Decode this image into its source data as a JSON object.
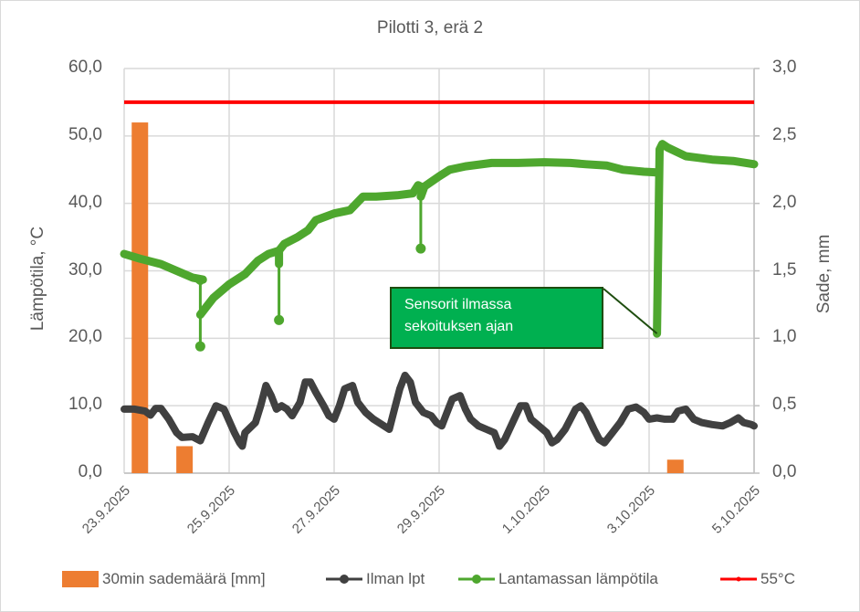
{
  "chart_data": {
    "type": "line+bar (combo, dual axis)",
    "title": "Pilotti 3, erä 2",
    "ylabel_left": "Lämpötila, °C",
    "ylabel_right": "Sade, mm",
    "ylim_left": [
      0,
      60
    ],
    "ylim_right": [
      0,
      3
    ],
    "yticks_left": [
      "0,0",
      "10,0",
      "20,0",
      "30,0",
      "40,0",
      "50,0",
      "60,0"
    ],
    "yticks_right": [
      "0,0",
      "0,5",
      "1,0",
      "1,5",
      "2,0",
      "2,5",
      "3,0"
    ],
    "x_ticks": [
      "23.9.2025",
      "25.9.2025",
      "27.9.2025",
      "29.9.2025",
      "1.10.2025",
      "3.10.2025",
      "5.10.2025"
    ],
    "x_unit": "days since 23.9.2025",
    "grid": true,
    "legend_position": "bottom",
    "series": [
      {
        "name": "30min sademäärä [mm]",
        "type": "bar",
        "axis": "right",
        "color": "#ed7d31",
        "points": [
          [
            0.3,
            2.6
          ],
          [
            1.15,
            0.2
          ],
          [
            10.5,
            0.1
          ]
        ]
      },
      {
        "name": "Ilman lpt",
        "type": "line",
        "axis": "left",
        "color": "#404040",
        "points": [
          [
            0,
            9.5
          ],
          [
            0.2,
            9.5
          ],
          [
            0.4,
            9.2
          ],
          [
            0.5,
            8.6
          ],
          [
            0.6,
            9.6
          ],
          [
            0.7,
            9.6
          ],
          [
            0.85,
            8.0
          ],
          [
            1.0,
            6.0
          ],
          [
            1.1,
            5.3
          ],
          [
            1.3,
            5.4
          ],
          [
            1.45,
            4.8
          ],
          [
            1.6,
            7.5
          ],
          [
            1.75,
            10.0
          ],
          [
            1.9,
            9.5
          ],
          [
            2.1,
            6.0
          ],
          [
            2.2,
            4.5
          ],
          [
            2.25,
            4.0
          ],
          [
            2.3,
            6.0
          ],
          [
            2.5,
            7.5
          ],
          [
            2.6,
            10.0
          ],
          [
            2.7,
            13.0
          ],
          [
            2.8,
            11.5
          ],
          [
            2.9,
            9.5
          ],
          [
            3.0,
            10.0
          ],
          [
            3.1,
            9.5
          ],
          [
            3.2,
            8.5
          ],
          [
            3.35,
            10.5
          ],
          [
            3.45,
            13.5
          ],
          [
            3.55,
            13.5
          ],
          [
            3.65,
            12.0
          ],
          [
            3.8,
            10.0
          ],
          [
            3.9,
            8.5
          ],
          [
            4.0,
            8.0
          ],
          [
            4.1,
            10.0
          ],
          [
            4.2,
            12.5
          ],
          [
            4.35,
            13.0
          ],
          [
            4.45,
            10.5
          ],
          [
            4.6,
            9.0
          ],
          [
            4.75,
            8.0
          ],
          [
            4.95,
            7.0
          ],
          [
            5.05,
            6.5
          ],
          [
            5.15,
            9.5
          ],
          [
            5.25,
            12.5
          ],
          [
            5.35,
            14.5
          ],
          [
            5.45,
            13.5
          ],
          [
            5.55,
            10.5
          ],
          [
            5.7,
            9.0
          ],
          [
            5.85,
            8.5
          ],
          [
            5.95,
            7.5
          ],
          [
            6.05,
            7.0
          ],
          [
            6.15,
            9.0
          ],
          [
            6.25,
            11.0
          ],
          [
            6.4,
            11.5
          ],
          [
            6.5,
            9.5
          ],
          [
            6.6,
            8.0
          ],
          [
            6.75,
            7.0
          ],
          [
            6.9,
            6.5
          ],
          [
            7.05,
            6.0
          ],
          [
            7.15,
            4.0
          ],
          [
            7.25,
            5.0
          ],
          [
            7.4,
            7.5
          ],
          [
            7.55,
            10.0
          ],
          [
            7.65,
            10.0
          ],
          [
            7.75,
            8.0
          ],
          [
            7.9,
            7.0
          ],
          [
            8.05,
            6.0
          ],
          [
            8.15,
            4.5
          ],
          [
            8.25,
            5.0
          ],
          [
            8.4,
            6.5
          ],
          [
            8.5,
            8.0
          ],
          [
            8.6,
            9.5
          ],
          [
            8.7,
            10.0
          ],
          [
            8.8,
            9.0
          ],
          [
            8.95,
            6.5
          ],
          [
            9.05,
            5.0
          ],
          [
            9.15,
            4.5
          ],
          [
            9.3,
            6.0
          ],
          [
            9.45,
            7.5
          ],
          [
            9.6,
            9.5
          ],
          [
            9.75,
            9.8
          ],
          [
            9.9,
            9.0
          ],
          [
            10.0,
            8.0
          ],
          [
            10.15,
            8.2
          ],
          [
            10.3,
            8.0
          ],
          [
            10.45,
            8.0
          ],
          [
            10.55,
            9.2
          ],
          [
            10.7,
            9.5
          ],
          [
            10.85,
            8.0
          ],
          [
            11.0,
            7.5
          ],
          [
            11.2,
            7.2
          ],
          [
            11.4,
            7.0
          ],
          [
            11.55,
            7.5
          ],
          [
            11.7,
            8.2
          ],
          [
            11.8,
            7.5
          ],
          [
            11.95,
            7.2
          ],
          [
            12.0,
            7.0
          ]
        ]
      },
      {
        "name": "Lantamassan lämpötila",
        "type": "line",
        "axis": "left",
        "color": "#4ea72e",
        "points": [
          [
            0,
            32.5
          ],
          [
            0.3,
            31.8
          ],
          [
            0.7,
            31.0
          ],
          [
            1.0,
            30.0
          ],
          [
            1.3,
            29.0
          ],
          [
            1.5,
            28.7
          ],
          [
            1.42,
            28.7
          ],
          [
            1.45,
            28.5
          ],
          [
            1.45,
            23.0
          ],
          [
            1.45,
            18.8
          ],
          [
            1.45,
            23.5
          ],
          [
            1.55,
            24.5
          ],
          [
            1.7,
            26.0
          ],
          [
            2.0,
            28.0
          ],
          [
            2.3,
            29.5
          ],
          [
            2.55,
            31.5
          ],
          [
            2.75,
            32.5
          ],
          [
            2.95,
            33.0
          ],
          [
            2.95,
            31.0
          ],
          [
            2.95,
            22.7
          ],
          [
            2.95,
            33.0
          ],
          [
            3.05,
            34.0
          ],
          [
            3.3,
            35.0
          ],
          [
            3.5,
            36.0
          ],
          [
            3.65,
            37.5
          ],
          [
            4.0,
            38.5
          ],
          [
            4.3,
            39.0
          ],
          [
            4.55,
            41.0
          ],
          [
            4.8,
            41.0
          ],
          [
            5.2,
            41.2
          ],
          [
            5.5,
            41.5
          ],
          [
            5.6,
            42.7
          ],
          [
            5.65,
            42.5
          ],
          [
            5.65,
            33.3
          ],
          [
            5.65,
            41.0
          ],
          [
            5.72,
            42.5
          ],
          [
            6.0,
            44.0
          ],
          [
            6.2,
            45.0
          ],
          [
            6.5,
            45.5
          ],
          [
            7.0,
            46.0
          ],
          [
            7.5,
            46.0
          ],
          [
            8.0,
            46.1
          ],
          [
            8.5,
            46.0
          ],
          [
            8.8,
            45.8
          ],
          [
            9.2,
            45.6
          ],
          [
            9.5,
            45.0
          ],
          [
            9.9,
            44.7
          ],
          [
            10.15,
            44.6
          ],
          [
            10.15,
            38.0
          ],
          [
            10.15,
            20.7
          ],
          [
            10.2,
            48.0
          ],
          [
            10.25,
            48.8
          ],
          [
            10.35,
            48.3
          ],
          [
            10.7,
            47.0
          ],
          [
            11.2,
            46.5
          ],
          [
            11.6,
            46.3
          ],
          [
            12.0,
            45.8
          ]
        ]
      },
      {
        "name": "55°C",
        "type": "line",
        "axis": "left",
        "color": "#ff0000",
        "points": [
          [
            0,
            55
          ],
          [
            12,
            55
          ]
        ]
      }
    ],
    "annotations": [
      {
        "text": "Sensorit ilmassa sekoituksen ajan",
        "points_to": [
          10.15,
          20.7
        ]
      }
    ]
  },
  "labels": {
    "title": "Pilotti 3, erä 2",
    "ylabel_left": "Lämpötila, °C",
    "ylabel_right": "Sade, mm",
    "annotation_line1": "Sensorit ilmassa",
    "annotation_line2": "sekoituksen ajan",
    "legend": [
      "30min sademäärä [mm]",
      "Ilman lpt",
      "Lantamassan lämpötila",
      "55°C"
    ]
  }
}
